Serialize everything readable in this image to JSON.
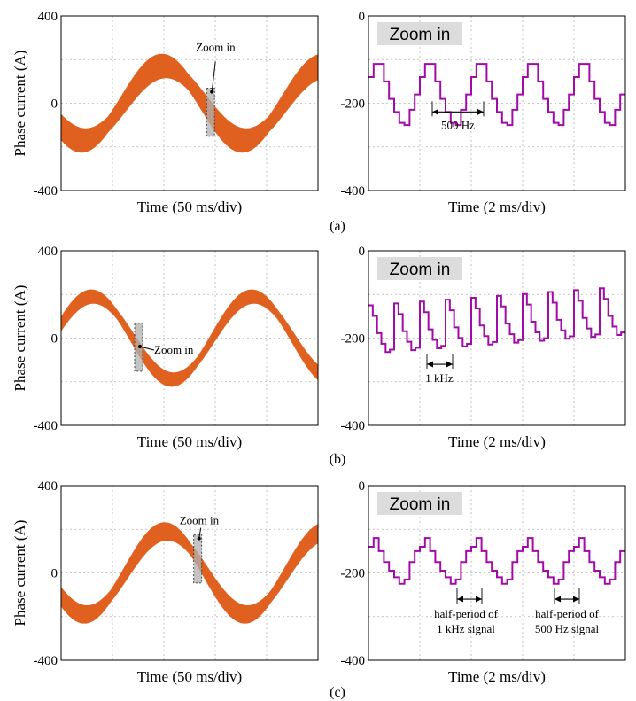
{
  "colors": {
    "wave": "#e0601f",
    "zoom_trace": "#a10ba8",
    "frame": "#000000",
    "grid": "#b5b5b5",
    "zoom_badge": "#dcdcdc",
    "marker": "#b0b0b0"
  },
  "rows": [
    {
      "caption": "(a)",
      "left": {
        "ylabel": "Phase current (A)",
        "xlabel": "Time (50 ms/div)",
        "yticks": [
          "400",
          "0",
          "-400"
        ],
        "callout": "Zoom in",
        "chart_data": {
          "type": "line",
          "ylim": [
            -400,
            400
          ],
          "x_divisions": 5,
          "grid": true,
          "series": [
            {
              "envelope": "sine with ripple",
              "amplitude": 170,
              "ripple": 120,
              "cycles": 1.6,
              "phase_deg": 220
            }
          ],
          "zoom_region_div": 2.9
        }
      },
      "right": {
        "badge": "Zoom in",
        "xlabel": "Time (2 ms/div)",
        "yticks": [
          "0",
          "-200",
          "-400"
        ],
        "annotations": [
          "500 Hz"
        ],
        "chart_data": {
          "type": "line",
          "ylim": [
            -400,
            0
          ],
          "x_divisions": 5,
          "grid": true,
          "period_div": 1.0,
          "levels": [
            -140,
            -110,
            -110,
            -150,
            -190,
            -220,
            -245,
            -250,
            -215,
            -180
          ]
        }
      }
    },
    {
      "caption": "(b)",
      "left": {
        "ylabel": "Phase current (A)",
        "xlabel": "Time (50 ms/div)",
        "yticks": [
          "400",
          "0",
          "-400"
        ],
        "callout": "Zoom in",
        "chart_data": {
          "type": "line",
          "ylim": [
            -400,
            400
          ],
          "x_divisions": 5,
          "grid": true,
          "series": [
            {
              "envelope": "sine with ripple",
              "amplitude": 190,
              "ripple": 70,
              "cycles": 1.6,
              "phase_deg": 20
            }
          ],
          "zoom_region_div": 1.5
        }
      },
      "right": {
        "badge": "Zoom in",
        "xlabel": "Time (2 ms/div)",
        "yticks": [
          "0",
          "-200",
          "-400"
        ],
        "annotations": [
          "1 kHz"
        ],
        "chart_data": {
          "type": "line",
          "ylim": [
            -400,
            0
          ],
          "x_divisions": 5,
          "grid": true,
          "period_div": 0.5,
          "levels": [
            -125,
            -150,
            -190,
            -215,
            -235,
            -230
          ]
        }
      }
    },
    {
      "caption": "(c)",
      "left": {
        "ylabel": "Phase current (A)",
        "xlabel": "Time (50 ms/div)",
        "yticks": [
          "400",
          "0",
          "-400"
        ],
        "callout": "Zoom in",
        "chart_data": {
          "type": "line",
          "ylim": [
            -400,
            400
          ],
          "x_divisions": 5,
          "grid": true,
          "series": [
            {
              "envelope": "sine with ripple",
              "amplitude": 190,
              "ripple": 90,
              "cycles": 1.6,
              "phase_deg": 215
            }
          ],
          "zoom_region_div": 2.65
        }
      },
      "right": {
        "badge": "Zoom in",
        "xlabel": "Time (2 ms/div)",
        "yticks": [
          "0",
          "-200",
          "-400"
        ],
        "annotations": [
          "half-period of\n1 kHz signal",
          "half-period of\n500 Hz signal"
        ],
        "chart_data": {
          "type": "line",
          "ylim": [
            -400,
            0
          ],
          "x_divisions": 5,
          "grid": true,
          "period_div": 1.0,
          "levels": [
            -140,
            -120,
            -150,
            -175,
            -195,
            -210,
            -225,
            -215,
            -175,
            -150
          ]
        }
      }
    }
  ]
}
